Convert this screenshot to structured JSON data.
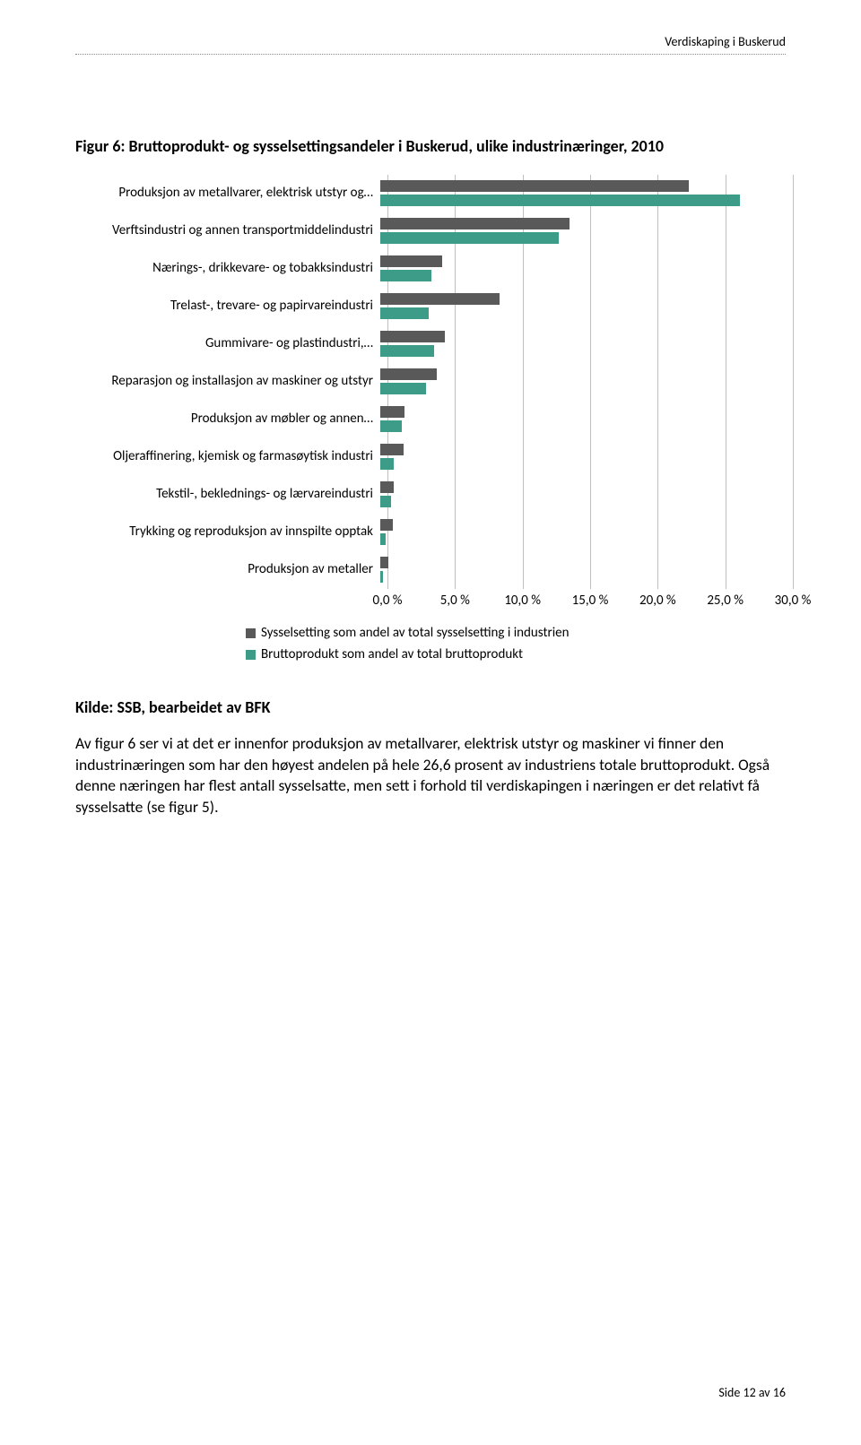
{
  "header": {
    "right_text": "Verdiskaping i Buskerud"
  },
  "figure_title": "Figur 6: Bruttoprodukt- og sysselsettingsandeler i Buskerud, ulike industrinæringer, 2010",
  "chart": {
    "type": "bar",
    "xlim": [
      0,
      30
    ],
    "xtick_step": 5,
    "xticks": [
      "0,0 %",
      "5,0 %",
      "10,0 %",
      "15,0 %",
      "20,0 %",
      "25,0 %",
      "30,0 %"
    ],
    "series_colors": {
      "sysselsetting": "#595959",
      "bruttoprodukt": "#3d9c88"
    },
    "gridline_color": "#bfbfbf",
    "categories": [
      {
        "label": "Produksjon av metallvarer, elektrisk utstyr og…",
        "sysselsetting": 22.8,
        "bruttoprodukt": 26.6
      },
      {
        "label": "Verftsindustri og annen transportmiddelindustri",
        "sysselsetting": 14.0,
        "bruttoprodukt": 13.2
      },
      {
        "label": "Nærings-, drikkevare- og tobakksindustri",
        "sysselsetting": 4.6,
        "bruttoprodukt": 3.8
      },
      {
        "label": "Trelast-, trevare- og papirvareindustri",
        "sysselsetting": 8.8,
        "bruttoprodukt": 3.6
      },
      {
        "label": "Gummivare- og plastindustri,…",
        "sysselsetting": 4.8,
        "bruttoprodukt": 4.0
      },
      {
        "label": "Reparasjon og installasjon av maskiner og utstyr",
        "sysselsetting": 4.2,
        "bruttoprodukt": 3.4
      },
      {
        "label": "Produksjon av møbler og annen…",
        "sysselsetting": 1.8,
        "bruttoprodukt": 1.6
      },
      {
        "label": "Oljeraffinering, kjemisk og farmasøytisk industri",
        "sysselsetting": 1.7,
        "bruttoprodukt": 1.0
      },
      {
        "label": "Tekstil-, beklednings- og lærvareindustri",
        "sysselsetting": 1.0,
        "bruttoprodukt": 0.8
      },
      {
        "label": "Trykking og reproduksjon av innspilte opptak",
        "sysselsetting": 0.9,
        "bruttoprodukt": 0.4
      },
      {
        "label": "Produksjon av metaller",
        "sysselsetting": 0.6,
        "bruttoprodukt": 0.2
      }
    ],
    "legend": {
      "sysselsetting": "Sysselsetting som andel av total sysselsetting i industrien",
      "bruttoprodukt": "Bruttoprodukt som andel av total bruttoprodukt"
    }
  },
  "kilde": "Kilde: SSB, bearbeidet av BFK",
  "paragraphs": [
    "Av figur 6 ser vi at det er innenfor produksjon av metallvarer, elektrisk utstyr og maskiner vi finner den industrinæringen som har den høyest andelen på hele 26,6 prosent av industriens totale bruttoprodukt. Også denne næringen har flest antall sysselsatte, men sett i forhold til verdiskapingen i næringen er det relativt få sysselsatte (se figur 5)."
  ],
  "footer": "Side 12 av 16"
}
